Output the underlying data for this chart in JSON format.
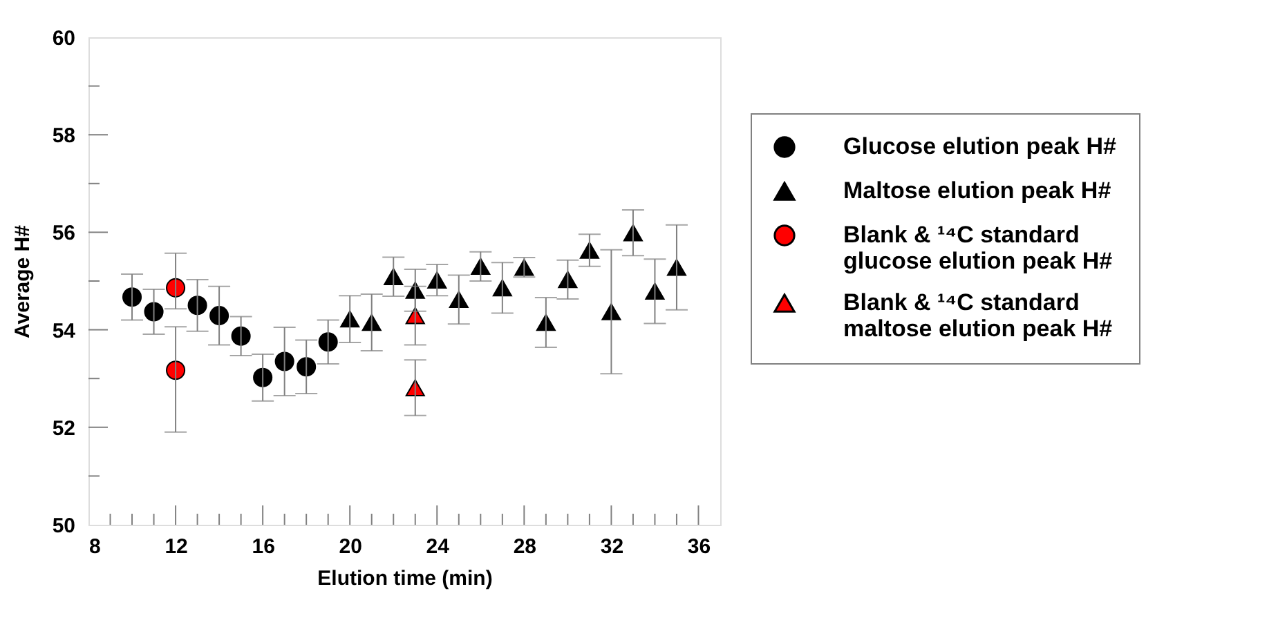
{
  "chart_data": {
    "type": "scatter",
    "xlabel": "Elution time (min)",
    "ylabel": "Average H#",
    "xlim": [
      8,
      37
    ],
    "ylim": [
      50,
      60
    ],
    "xticks": [
      8,
      {
        "value": 9,
        "label": null
      },
      {
        "value": 10,
        "label": null
      },
      {
        "value": 11,
        "label": null
      },
      12,
      {
        "value": 13,
        "label": null
      },
      {
        "value": 14,
        "label": null
      },
      {
        "value": 15,
        "label": null
      },
      16,
      {
        "value": 17,
        "label": null
      },
      {
        "value": 18,
        "label": null
      },
      {
        "value": 19,
        "label": null
      },
      20,
      {
        "value": 21,
        "label": null
      },
      {
        "value": 22,
        "label": null
      },
      {
        "value": 23,
        "label": null
      },
      24,
      {
        "value": 25,
        "label": null
      },
      {
        "value": 26,
        "label": null
      },
      {
        "value": 27,
        "label": null
      },
      28,
      {
        "value": 29,
        "label": null
      },
      {
        "value": 30,
        "label": null
      },
      {
        "value": 31,
        "label": null
      },
      32,
      {
        "value": 33,
        "label": null
      },
      {
        "value": 34,
        "label": null
      },
      {
        "value": 35,
        "label": null
      },
      36
    ],
    "yticks": [
      50,
      {
        "value": 51,
        "label": null
      },
      52,
      {
        "value": 53,
        "label": null
      },
      54,
      {
        "value": 55,
        "label": null
      },
      56,
      {
        "value": 57,
        "label": null
      },
      58,
      {
        "value": 59,
        "label": null
      },
      60
    ],
    "grid": false,
    "legend": "right",
    "series": [
      {
        "name": "Glucose elution peak H#",
        "color": "#000000",
        "marker": "circle",
        "x": [
          10,
          11,
          13,
          14,
          15,
          16,
          17,
          18,
          19
        ],
        "values": [
          54.67,
          54.37,
          54.5,
          54.29,
          53.87,
          53.02,
          53.35,
          53.24,
          53.75
        ],
        "errors": [
          0.47,
          0.46,
          0.53,
          0.6,
          0.4,
          0.48,
          0.7,
          0.55,
          0.45
        ]
      },
      {
        "name": "Maltose elution peak H#",
        "color": "#000000",
        "marker": "triangle",
        "x": [
          20,
          21,
          22,
          23,
          24,
          25,
          26,
          27,
          28,
          29,
          30,
          31,
          32,
          33,
          34,
          35
        ],
        "values": [
          54.22,
          54.15,
          55.09,
          54.81,
          55.02,
          54.62,
          55.3,
          54.86,
          55.28,
          54.15,
          55.03,
          55.63,
          54.37,
          55.99,
          54.79,
          55.28
        ],
        "errors": [
          0.48,
          0.58,
          0.4,
          0.43,
          0.32,
          0.5,
          0.3,
          0.52,
          0.2,
          0.51,
          0.4,
          0.33,
          1.27,
          0.47,
          0.66,
          0.87
        ]
      },
      {
        "name": "Blank & ¹⁴C standard glucose elution peak H#",
        "color": "#ff0000",
        "marker": "circle",
        "x": [
          12,
          12
        ],
        "values": [
          54.86,
          53.17
        ],
        "errors": [
          [
            54.43,
            55.57
          ],
          [
            51.9,
            54.06
          ]
        ]
      },
      {
        "name": "Blank & ¹⁴C standard maltose elution peak H#",
        "color": "#ff0000",
        "marker": "triangle",
        "x": [
          23,
          23
        ],
        "values": [
          54.29,
          52.81
        ],
        "errors": [
          0.6,
          0.57
        ]
      }
    ]
  }
}
